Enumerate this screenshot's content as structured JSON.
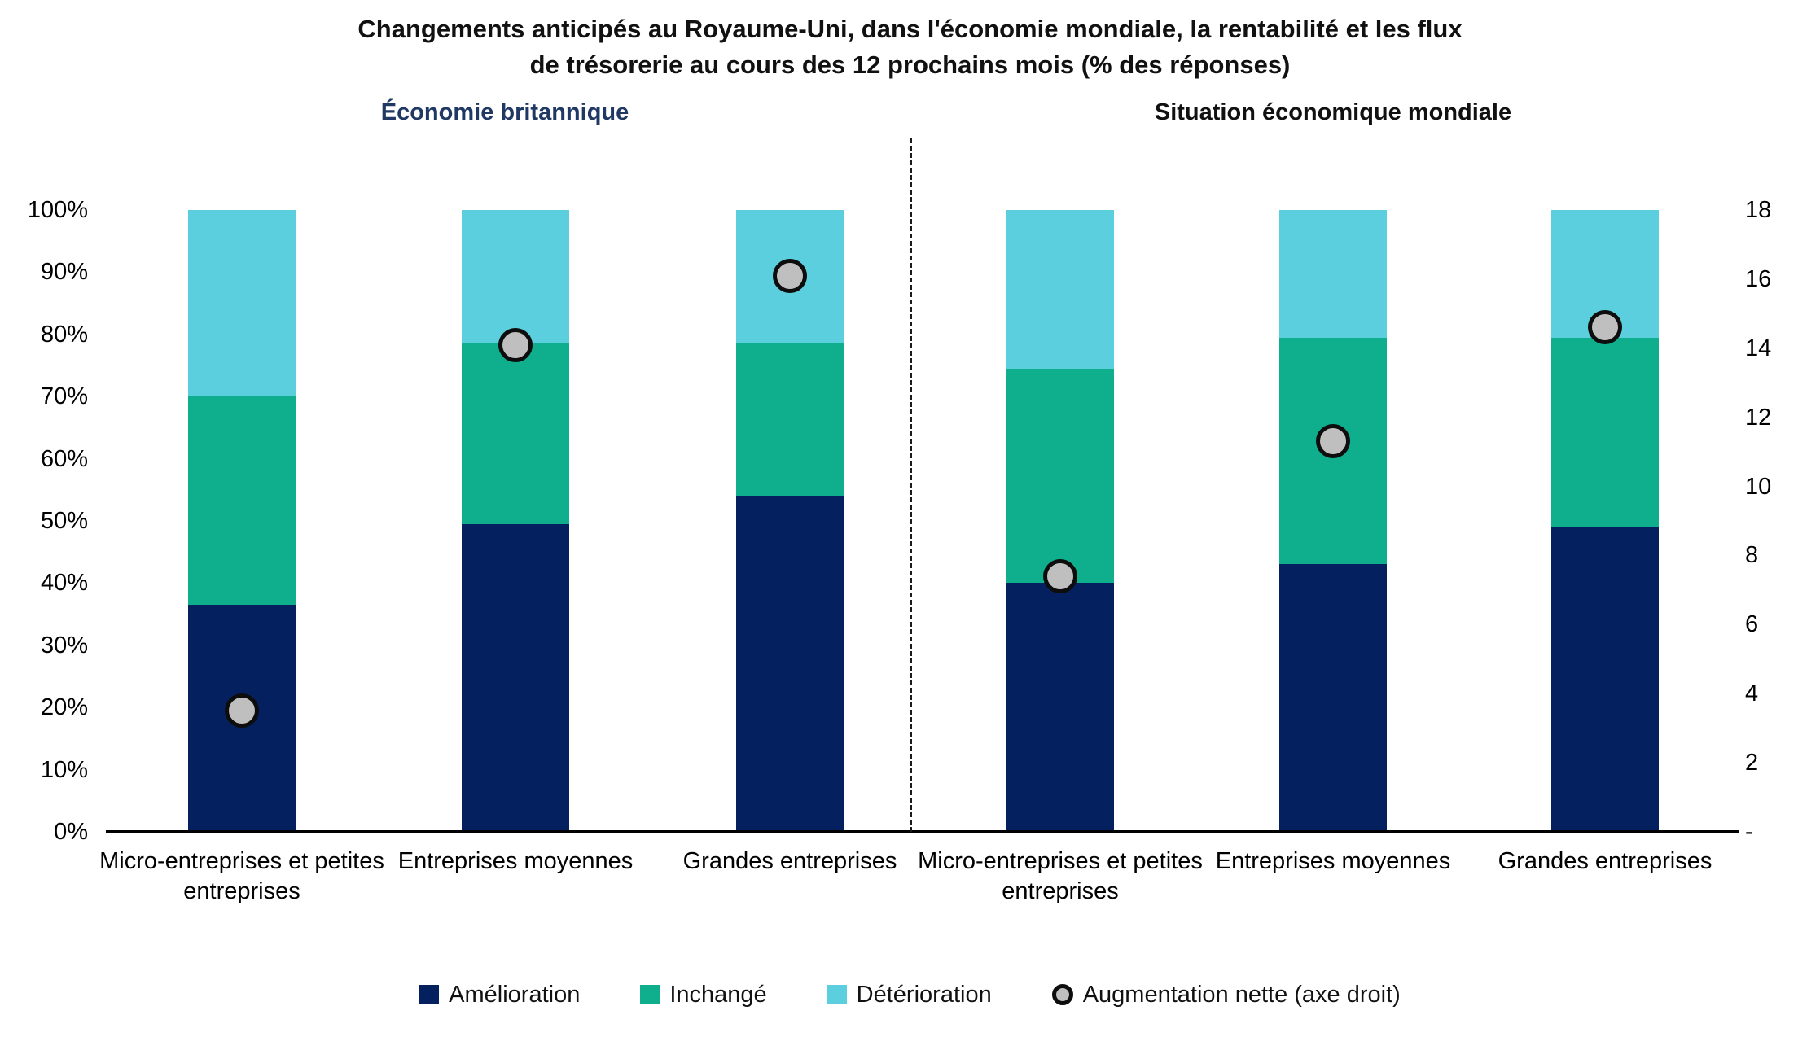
{
  "title": {
    "line1": "Changements anticipés au Royaume-Uni, dans l'économie mondiale, la rentabilité et les flux",
    "line2": "de trésorerie au cours des 12 prochains mois (% des réponses)"
  },
  "colors": {
    "improvement": "#04205F",
    "unchanged": "#0FAE8D",
    "deterioration": "#5CCFDF",
    "net_dot_fill": "#BFBFBF",
    "net_dot_stroke": "#0D0D0D",
    "left_panel_title": "#1F3864",
    "axis_line": "#000000"
  },
  "chart_data": {
    "type": "bar",
    "stacked": true,
    "unit": "%",
    "legend_position": "bottom",
    "grid": false,
    "left_axis": {
      "min": 0,
      "max": 100,
      "ticks": [
        "0%",
        "10%",
        "20%",
        "30%",
        "40%",
        "50%",
        "60%",
        "70%",
        "80%",
        "90%",
        "100%"
      ]
    },
    "right_axis": {
      "min": 0,
      "max": 18,
      "ticks": [
        "-",
        "2",
        "4",
        "6",
        "8",
        "10",
        "12",
        "14",
        "16",
        "18"
      ]
    },
    "groups": [
      {
        "name": "Économie britannique",
        "categories": [
          "Micro-entreprises et petites entreprises",
          "Entreprises moyennes",
          "Grandes entreprises"
        ],
        "series": [
          {
            "name": "Amélioration",
            "axis": "left",
            "values": [
              36.5,
              49.5,
              54.0
            ]
          },
          {
            "name": "Inchangé",
            "axis": "left",
            "values": [
              33.5,
              29.0,
              24.5
            ]
          },
          {
            "name": "Détérioration",
            "axis": "left",
            "values": [
              30.0,
              21.5,
              21.5
            ]
          },
          {
            "name": "Augmentation nette (axe droit)",
            "axis": "right",
            "values": [
              3.5,
              14.1,
              16.1
            ]
          }
        ]
      },
      {
        "name": "Situation économique mondiale",
        "categories": [
          "Micro-entreprises et petites entreprises",
          "Entreprises moyennes",
          "Grandes entreprises"
        ],
        "series": [
          {
            "name": "Amélioration",
            "axis": "left",
            "values": [
              40.0,
              43.0,
              49.0
            ]
          },
          {
            "name": "Inchangé",
            "axis": "left",
            "values": [
              34.5,
              36.5,
              30.5
            ]
          },
          {
            "name": "Détérioration",
            "axis": "left",
            "values": [
              25.5,
              20.5,
              20.5
            ]
          },
          {
            "name": "Augmentation nette (axe droit)",
            "axis": "right",
            "values": [
              7.4,
              11.3,
              14.6
            ]
          }
        ]
      }
    ]
  },
  "legend": {
    "items": [
      {
        "label": "Amélioration",
        "swatch": "square",
        "color_key": "improvement"
      },
      {
        "label": "Inchangé",
        "swatch": "square",
        "color_key": "unchanged"
      },
      {
        "label": "Détérioration",
        "swatch": "square",
        "color_key": "deterioration"
      },
      {
        "label": "Augmentation nette (axe droit)",
        "swatch": "circle",
        "color_key": "net_dot_fill"
      }
    ]
  }
}
